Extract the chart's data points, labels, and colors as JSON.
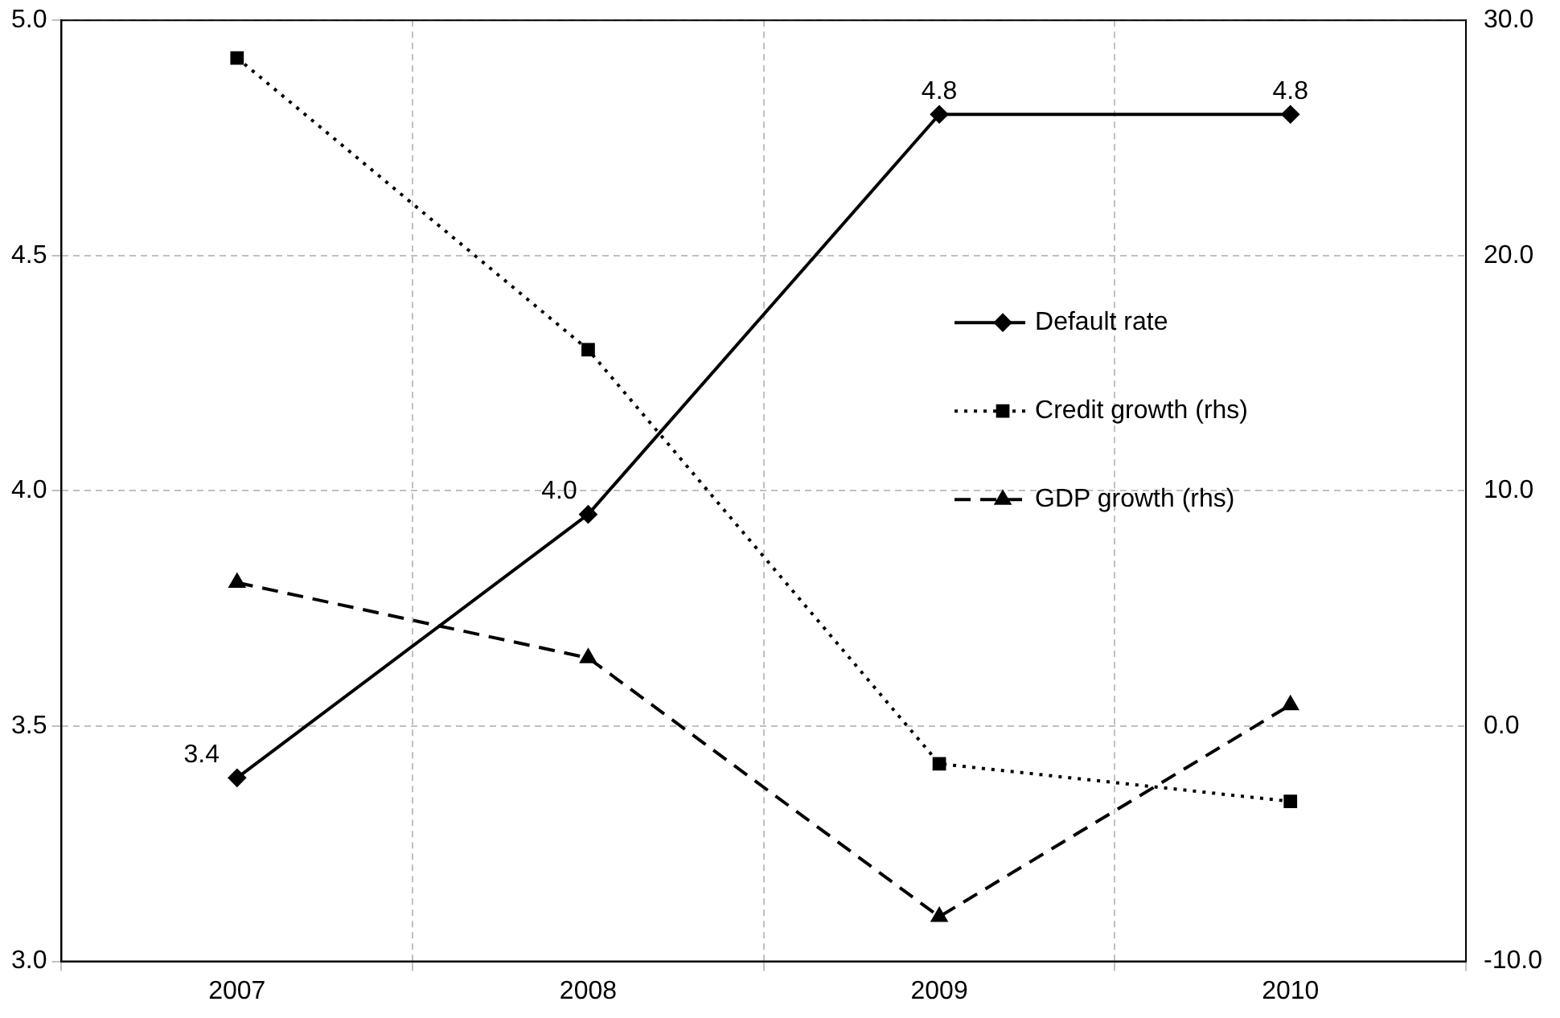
{
  "chart_data": {
    "type": "line",
    "categories": [
      "2007",
      "2008",
      "2009",
      "2010"
    ],
    "series": [
      {
        "name": "Default rate",
        "color": "#000000",
        "values": [
          3.39,
          3.95,
          4.8,
          4.8
        ],
        "value_labels": [
          "3.4",
          "4.0",
          "4.8",
          "4.8"
        ],
        "marker": "diamond",
        "line_style": "solid"
      },
      {
        "name": "Credit growth (rhs)",
        "color": "#000000",
        "values": [
          28.4,
          16.0,
          -1.6,
          -3.2
        ],
        "axis": "y2",
        "marker": "square",
        "line_style": "dotted"
      },
      {
        "name": "GDP growth (rhs)",
        "color": "#000000",
        "values": [
          6.1,
          2.9,
          -8.1,
          0.9
        ],
        "axis": "y2",
        "marker": "triangle",
        "line_style": "dashed"
      }
    ],
    "ylim": [
      3.0,
      5.0
    ],
    "yticks": [
      {
        "value": 3,
        "label": "3.0"
      },
      {
        "value": 3.5,
        "label": "3.5"
      },
      {
        "value": 4,
        "label": "4.0"
      },
      {
        "value": 4.5,
        "label": "4.5"
      },
      {
        "value": 5,
        "label": "5.0"
      }
    ],
    "y2lim": [
      -10,
      30
    ],
    "y2ticks": [
      {
        "value": -10,
        "label": "-10.0"
      },
      {
        "value": 0,
        "label": "0.0"
      },
      {
        "value": 10,
        "label": "10.0"
      },
      {
        "value": 20,
        "label": "20.0"
      },
      {
        "value": 30,
        "label": "30.0"
      }
    ],
    "grid": true,
    "legend": "right"
  }
}
